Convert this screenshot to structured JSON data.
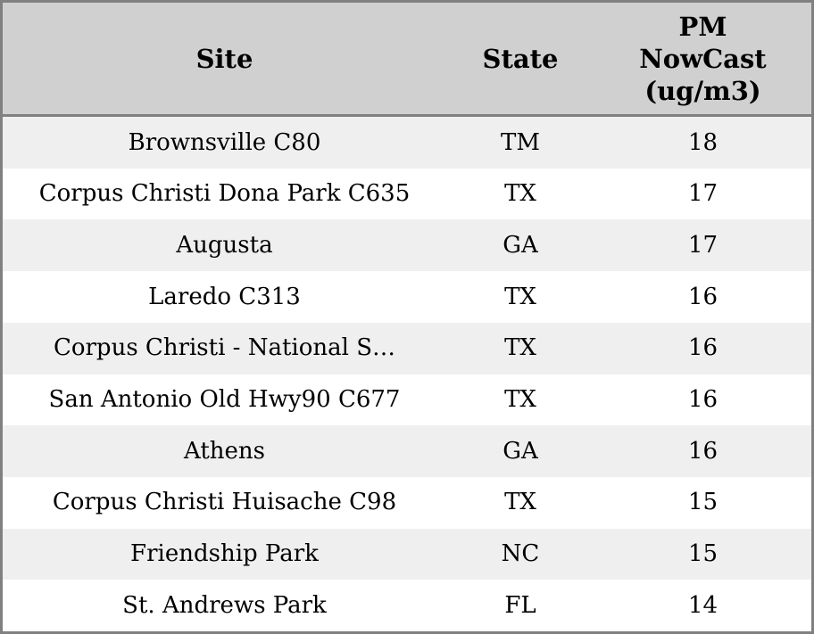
{
  "table": {
    "columns": [
      {
        "key": "site",
        "label": "Site"
      },
      {
        "key": "state",
        "label": "State"
      },
      {
        "key": "value",
        "label": "PM NowCast (ug/m3)"
      }
    ],
    "rows": [
      {
        "site": "Brownsville C80",
        "state": "TM",
        "value": "18"
      },
      {
        "site": "Corpus Christi Dona Park C635",
        "state": "TX",
        "value": "17"
      },
      {
        "site": "Augusta",
        "state": "GA",
        "value": "17"
      },
      {
        "site": "Laredo C313",
        "state": "TX",
        "value": "16"
      },
      {
        "site": "Corpus Christi - National S…",
        "state": "TX",
        "value": "16"
      },
      {
        "site": "San Antonio Old Hwy90 C677",
        "state": "TX",
        "value": "16"
      },
      {
        "site": "Athens",
        "state": "GA",
        "value": "16"
      },
      {
        "site": "Corpus Christi Huisache C98",
        "state": "TX",
        "value": "15"
      },
      {
        "site": "Friendship Park",
        "state": "NC",
        "value": "15"
      },
      {
        "site": "St. Andrews Park",
        "state": "FL",
        "value": "14"
      }
    ]
  },
  "colors": {
    "border": "#808080",
    "header_bg": "#d0d0d0",
    "row_alt_bg": "#efefef",
    "row_bg": "#ffffff",
    "text": "#000000"
  },
  "chart_data": {
    "type": "table",
    "columns": [
      "Site",
      "State",
      "PM NowCast (ug/m3)"
    ],
    "rows": [
      [
        "Brownsville C80",
        "TM",
        18
      ],
      [
        "Corpus Christi Dona Park C635",
        "TX",
        17
      ],
      [
        "Augusta",
        "GA",
        17
      ],
      [
        "Laredo C313",
        "TX",
        16
      ],
      [
        "Corpus Christi - National S…",
        "TX",
        16
      ],
      [
        "San Antonio Old Hwy90 C677",
        "TX",
        16
      ],
      [
        "Athens",
        "GA",
        16
      ],
      [
        "Corpus Christi Huisache C98",
        "TX",
        15
      ],
      [
        "Friendship Park",
        "NC",
        15
      ],
      [
        "St. Andrews Park",
        "FL",
        14
      ]
    ]
  }
}
